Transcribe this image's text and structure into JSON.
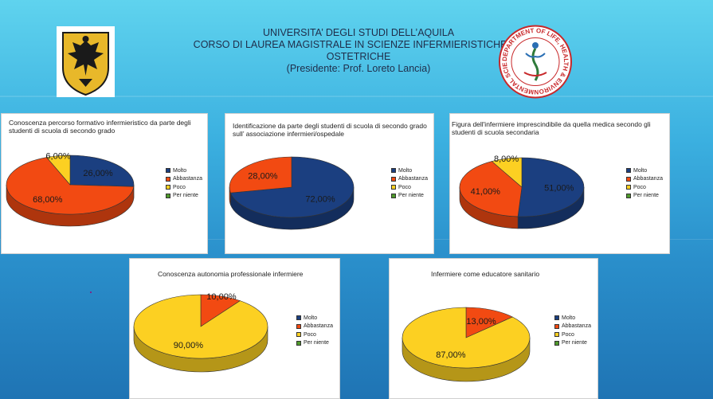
{
  "header": {
    "line1": "UNIVERSITA’ DEGLI STUDI DELL’AQUILA",
    "line2": "CORSO DI LAUREA MAGISTRALE IN SCIENZE INFERMIERISTICHE ED",
    "line3": "OSTETRICHE",
    "line4": "(Presidente: Prof. Loreto Lancia)"
  },
  "logo_right_text": "DEPARTMENT OF LIFE, HEALTH & ENVIRONMENTAL SCIENCES",
  "colors": {
    "Molto": "#1b3f80",
    "Abbastanza": "#f24a12",
    "Poco": "#fcd022",
    "Per niente": "#4f9a2b"
  },
  "legend_labels": [
    "Molto",
    "Abbastanza",
    "Poco",
    "Per niente"
  ],
  "chart_data": [
    {
      "type": "pie",
      "title": "Conoscenza percorso formativo infermieristico da parte degli studenti di scuola di secondo grado",
      "categories": [
        "Molto",
        "Abbastanza",
        "Poco",
        "Per niente"
      ],
      "values": [
        26,
        68,
        6,
        0
      ],
      "labels": [
        "26,00%",
        "68,00%",
        "6,00%",
        ""
      ]
    },
    {
      "type": "pie",
      "title": "Identificazione da parte degli studenti di scuola di secondo grado sull’ associazione infermieri/ospedale",
      "categories": [
        "Molto",
        "Abbastanza",
        "Poco",
        "Per niente"
      ],
      "values": [
        72,
        28,
        0,
        0
      ],
      "labels": [
        "72,00%",
        "28,00%",
        "",
        ""
      ]
    },
    {
      "type": "pie",
      "title": "Figura dell'infermiere imprescindibile da quella medica secondo gli studenti di scuola secondaria",
      "categories": [
        "Molto",
        "Abbastanza",
        "Poco",
        "Per niente"
      ],
      "values": [
        51,
        41,
        8,
        0
      ],
      "labels": [
        "51,00%",
        "41,00%",
        "8,00%",
        ""
      ]
    },
    {
      "type": "pie",
      "title": "Conoscenza autonomia professionale infermiere",
      "categories": [
        "Molto",
        "Abbastanza",
        "Poco",
        "Per niente"
      ],
      "values": [
        0,
        10,
        90,
        0
      ],
      "labels": [
        "",
        "10,00%",
        "90,00%",
        ""
      ]
    },
    {
      "type": "pie",
      "title": "Infermiere come educatore  sanitario",
      "categories": [
        "Molto",
        "Abbastanza",
        "Poco",
        "Per niente"
      ],
      "values": [
        0,
        13,
        87,
        0
      ],
      "labels": [
        "",
        "13,00%",
        "87,00%",
        ""
      ]
    }
  ]
}
